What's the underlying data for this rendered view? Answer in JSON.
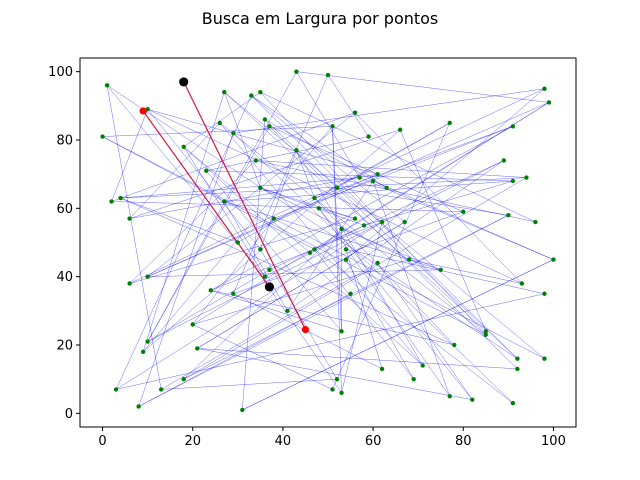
{
  "chart_data": {
    "type": "scatter",
    "title": "Busca em Largura por pontos",
    "xlabel": "",
    "ylabel": "",
    "xlim": [
      -5,
      105
    ],
    "ylim": [
      -4,
      104
    ],
    "xticks": [
      0,
      20,
      40,
      60,
      80,
      100
    ],
    "yticks": [
      0,
      20,
      40,
      60,
      80,
      100
    ],
    "grid": false,
    "colors": {
      "points": "#008000",
      "edges": "#0000ff",
      "path": "#dc143c",
      "endpoints": "#ff0000",
      "special": "#000000"
    },
    "points": [
      [
        1,
        96
      ],
      [
        0,
        81
      ],
      [
        2,
        62
      ],
      [
        4,
        63
      ],
      [
        6,
        57
      ],
      [
        6,
        38
      ],
      [
        10,
        89
      ],
      [
        10,
        40
      ],
      [
        9,
        18
      ],
      [
        10,
        21
      ],
      [
        3,
        7
      ],
      [
        8,
        2
      ],
      [
        13,
        7
      ],
      [
        18,
        10
      ],
      [
        20,
        26
      ],
      [
        21,
        19
      ],
      [
        18,
        78
      ],
      [
        23,
        71
      ],
      [
        24,
        36
      ],
      [
        27,
        94
      ],
      [
        26,
        85
      ],
      [
        27,
        62
      ],
      [
        29,
        35
      ],
      [
        29,
        82
      ],
      [
        30,
        50
      ],
      [
        31,
        1
      ],
      [
        33,
        93
      ],
      [
        35,
        94
      ],
      [
        34,
        74
      ],
      [
        35,
        66
      ],
      [
        36,
        86
      ],
      [
        37,
        84
      ],
      [
        35,
        48
      ],
      [
        36,
        40
      ],
      [
        37,
        42
      ],
      [
        38,
        57
      ],
      [
        41,
        30
      ],
      [
        43,
        100
      ],
      [
        43,
        77
      ],
      [
        46,
        47
      ],
      [
        47,
        48
      ],
      [
        47,
        63
      ],
      [
        48,
        60
      ],
      [
        50,
        99
      ],
      [
        51,
        84
      ],
      [
        52,
        66
      ],
      [
        53,
        54
      ],
      [
        54,
        48
      ],
      [
        54,
        45
      ],
      [
        55,
        35
      ],
      [
        56,
        88
      ],
      [
        56,
        57
      ],
      [
        57,
        69
      ],
      [
        58,
        55
      ],
      [
        59,
        81
      ],
      [
        60,
        68
      ],
      [
        61,
        44
      ],
      [
        61,
        70
      ],
      [
        62,
        56
      ],
      [
        63,
        66
      ],
      [
        66,
        83
      ],
      [
        67,
        56
      ],
      [
        68,
        45
      ],
      [
        69,
        10
      ],
      [
        71,
        14
      ],
      [
        75,
        42
      ],
      [
        77,
        85
      ],
      [
        78,
        20
      ],
      [
        80,
        59
      ],
      [
        82,
        4
      ],
      [
        85,
        23
      ],
      [
        85,
        24
      ],
      [
        89,
        74
      ],
      [
        90,
        58
      ],
      [
        91,
        84
      ],
      [
        91,
        68
      ],
      [
        91,
        3
      ],
      [
        92,
        16
      ],
      [
        92,
        13
      ],
      [
        93,
        38
      ],
      [
        94,
        69
      ],
      [
        96,
        56
      ],
      [
        98,
        95
      ],
      [
        98,
        16
      ],
      [
        98,
        35
      ],
      [
        99,
        91
      ],
      [
        100,
        45
      ],
      [
        53,
        24
      ],
      [
        51,
        7
      ],
      [
        52,
        10
      ],
      [
        53,
        6
      ],
      [
        62,
        13
      ],
      [
        77,
        5
      ]
    ],
    "edges": [
      [
        0,
        12
      ],
      [
        0,
        33
      ],
      [
        1,
        40
      ],
      [
        1,
        70
      ],
      [
        2,
        6
      ],
      [
        2,
        50
      ],
      [
        3,
        24
      ],
      [
        3,
        67
      ],
      [
        4,
        20
      ],
      [
        4,
        60
      ],
      [
        5,
        28
      ],
      [
        5,
        82
      ],
      [
        6,
        79
      ],
      [
        6,
        57
      ],
      [
        7,
        57
      ],
      [
        7,
        85
      ],
      [
        8,
        19
      ],
      [
        8,
        44
      ],
      [
        9,
        37
      ],
      [
        9,
        31
      ],
      [
        10,
        26
      ],
      [
        10,
        84
      ],
      [
        11,
        23
      ],
      [
        11,
        73
      ],
      [
        12,
        56
      ],
      [
        13,
        46
      ],
      [
        13,
        80
      ],
      [
        14,
        35
      ],
      [
        14,
        88
      ],
      [
        15,
        69
      ],
      [
        15,
        61
      ],
      [
        16,
        27
      ],
      [
        16,
        39
      ],
      [
        17,
        75
      ],
      [
        17,
        87
      ],
      [
        18,
        58
      ],
      [
        18,
        74
      ],
      [
        19,
        29
      ],
      [
        19,
        71
      ],
      [
        20,
        64
      ],
      [
        21,
        65
      ],
      [
        21,
        36
      ],
      [
        22,
        43
      ],
      [
        22,
        68
      ],
      [
        23,
        76
      ],
      [
        24,
        90
      ],
      [
        24,
        66
      ],
      [
        25,
        30
      ],
      [
        25,
        86
      ],
      [
        26,
        59
      ],
      [
        27,
        70
      ],
      [
        28,
        81
      ],
      [
        29,
        62
      ],
      [
        30,
        77
      ],
      [
        31,
        78
      ],
      [
        32,
        38
      ],
      [
        32,
        89
      ],
      [
        33,
        53
      ],
      [
        34,
        72
      ],
      [
        35,
        83
      ],
      [
        36,
        55
      ],
      [
        37,
        52
      ],
      [
        38,
        41
      ],
      [
        39,
        85
      ],
      [
        40,
        63
      ],
      [
        41,
        67
      ],
      [
        42,
        51
      ],
      [
        42,
        92
      ],
      [
        43,
        54
      ],
      [
        44,
        1
      ],
      [
        45,
        73
      ],
      [
        46,
        87
      ],
      [
        47,
        91
      ],
      [
        48,
        82
      ],
      [
        49,
        11
      ],
      [
        50,
        79
      ],
      [
        51,
        5
      ],
      [
        52,
        3
      ],
      [
        53,
        75
      ],
      [
        54,
        17
      ],
      [
        55,
        86
      ],
      [
        56,
        69
      ],
      [
        57,
        4
      ],
      [
        58,
        10
      ],
      [
        59,
        30
      ],
      [
        60,
        8
      ],
      [
        61,
        26
      ],
      [
        62,
        14
      ],
      [
        63,
        48
      ],
      [
        64,
        16
      ],
      [
        65,
        7
      ],
      [
        66,
        45
      ],
      [
        67,
        18
      ],
      [
        68,
        2
      ],
      [
        69,
        42
      ],
      [
        70,
        20
      ],
      [
        71,
        60
      ],
      [
        72,
        9
      ],
      [
        73,
        13
      ],
      [
        74,
        35
      ],
      [
        75,
        21
      ],
      [
        76,
        40
      ],
      [
        77,
        0
      ],
      [
        78,
        15
      ],
      [
        79,
        62
      ],
      [
        80,
        28
      ],
      [
        81,
        27
      ],
      [
        82,
        23
      ],
      [
        83,
        19
      ],
      [
        84,
        47
      ],
      [
        85,
        37
      ],
      [
        86,
        52
      ],
      [
        87,
        44
      ],
      [
        88,
        66
      ],
      [
        89,
        12
      ],
      [
        90,
        58
      ],
      [
        91,
        22
      ],
      [
        92,
        55
      ],
      [
        6,
        32
      ],
      [
        7,
        50
      ],
      [
        16,
        33
      ],
      [
        29,
        51
      ],
      [
        34,
        9
      ],
      [
        36,
        72
      ],
      [
        38,
        64
      ],
      [
        46,
        65
      ],
      [
        53,
        29
      ],
      [
        61,
        15
      ],
      [
        68,
        31
      ],
      [
        74,
        41
      ],
      [
        80,
        3
      ],
      [
        85,
        14
      ],
      [
        86,
        25
      ],
      [
        87,
        18
      ],
      [
        26,
        77
      ],
      [
        44,
        90
      ]
    ],
    "start": [
      18,
      97
    ],
    "goal": [
      37,
      37
    ],
    "path_start": [
      9,
      88.5
    ],
    "path_end": [
      45,
      24.5
    ]
  }
}
